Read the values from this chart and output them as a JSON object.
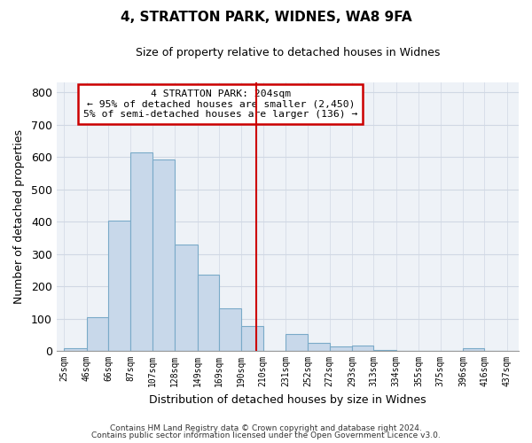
{
  "title": "4, STRATTON PARK, WIDNES, WA8 9FA",
  "subtitle": "Size of property relative to detached houses in Widnes",
  "xlabel": "Distribution of detached houses by size in Widnes",
  "ylabel": "Number of detached properties",
  "bar_left_edges": [
    25,
    46,
    66,
    87,
    107,
    128,
    149,
    169,
    190,
    210,
    231,
    252,
    272,
    293,
    313,
    334,
    355,
    375,
    396,
    416
  ],
  "bar_widths": [
    21,
    20,
    21,
    20,
    21,
    21,
    20,
    21,
    20,
    21,
    21,
    20,
    21,
    20,
    21,
    21,
    20,
    21,
    20,
    21
  ],
  "bar_heights": [
    8,
    105,
    403,
    614,
    591,
    330,
    237,
    133,
    78,
    0,
    51,
    25,
    15,
    16,
    3,
    0,
    0,
    0,
    8,
    0
  ],
  "bar_color": "#c8d8ea",
  "bar_edge_color": "#7aaac8",
  "tick_labels": [
    "25sqm",
    "46sqm",
    "66sqm",
    "87sqm",
    "107sqm",
    "128sqm",
    "149sqm",
    "169sqm",
    "190sqm",
    "210sqm",
    "231sqm",
    "252sqm",
    "272sqm",
    "293sqm",
    "313sqm",
    "334sqm",
    "355sqm",
    "375sqm",
    "396sqm",
    "416sqm",
    "437sqm"
  ],
  "tick_positions": [
    25,
    46,
    66,
    87,
    107,
    128,
    149,
    169,
    190,
    210,
    231,
    252,
    272,
    293,
    313,
    334,
    355,
    375,
    396,
    416,
    437
  ],
  "vline_x": 204,
  "vline_color": "#cc0000",
  "ylim": [
    0,
    830
  ],
  "xlim": [
    18,
    448
  ],
  "annotation_title": "4 STRATTON PARK: 204sqm",
  "annotation_line1": "← 95% of detached houses are smaller (2,450)",
  "annotation_line2": "5% of semi-detached houses are larger (136) →",
  "footer1": "Contains HM Land Registry data © Crown copyright and database right 2024.",
  "footer2": "Contains public sector information licensed under the Open Government Licence v3.0.",
  "bg_color": "#eef2f7",
  "grid_color": "#d0d8e4"
}
